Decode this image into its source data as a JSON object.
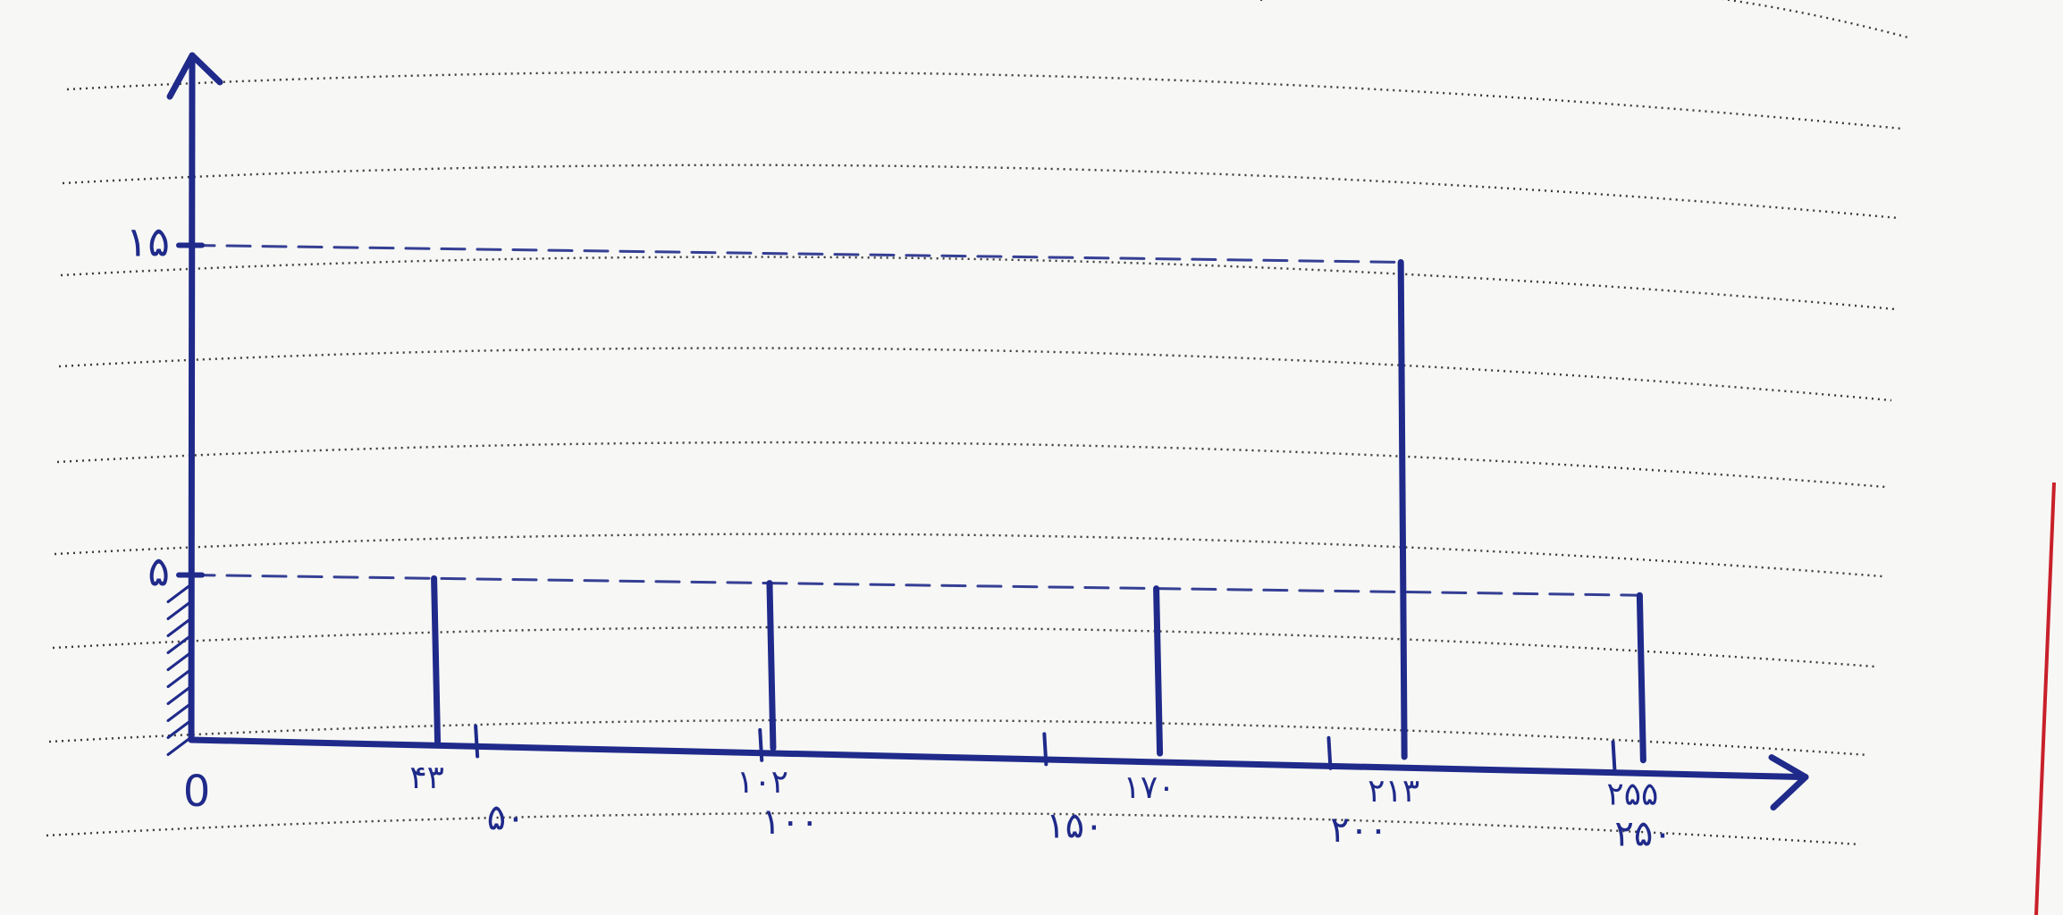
{
  "chart_data": {
    "type": "bar",
    "x_ticks": [
      "0",
      "۵۰",
      "۱۰۰",
      "۱۵۰",
      "۲۰۰",
      "۲۵۰"
    ],
    "x_tick_values": [
      0,
      50,
      100,
      150,
      200,
      250
    ],
    "y_ticks": [
      "۵",
      "۱۵"
    ],
    "y_tick_values": [
      5,
      15
    ],
    "xlim": [
      0,
      265
    ],
    "ylim": [
      0,
      20
    ],
    "bars": [
      {
        "x": 43,
        "label": "۴۳",
        "value": 5
      },
      {
        "x": 102,
        "label": "۱۰۲",
        "value": 5
      },
      {
        "x": 170,
        "label": "۱۷۰",
        "value": 5
      },
      {
        "x": 213,
        "label": "۲۱۳",
        "value": 15
      },
      {
        "x": 255,
        "label": "۲۵۵",
        "value": 5
      }
    ]
  },
  "colors": {
    "ink": "#1f2a8a",
    "paper": "#f7f7f5",
    "ruled_line": "#3a3a3a",
    "margin_line": "#c8202a"
  }
}
